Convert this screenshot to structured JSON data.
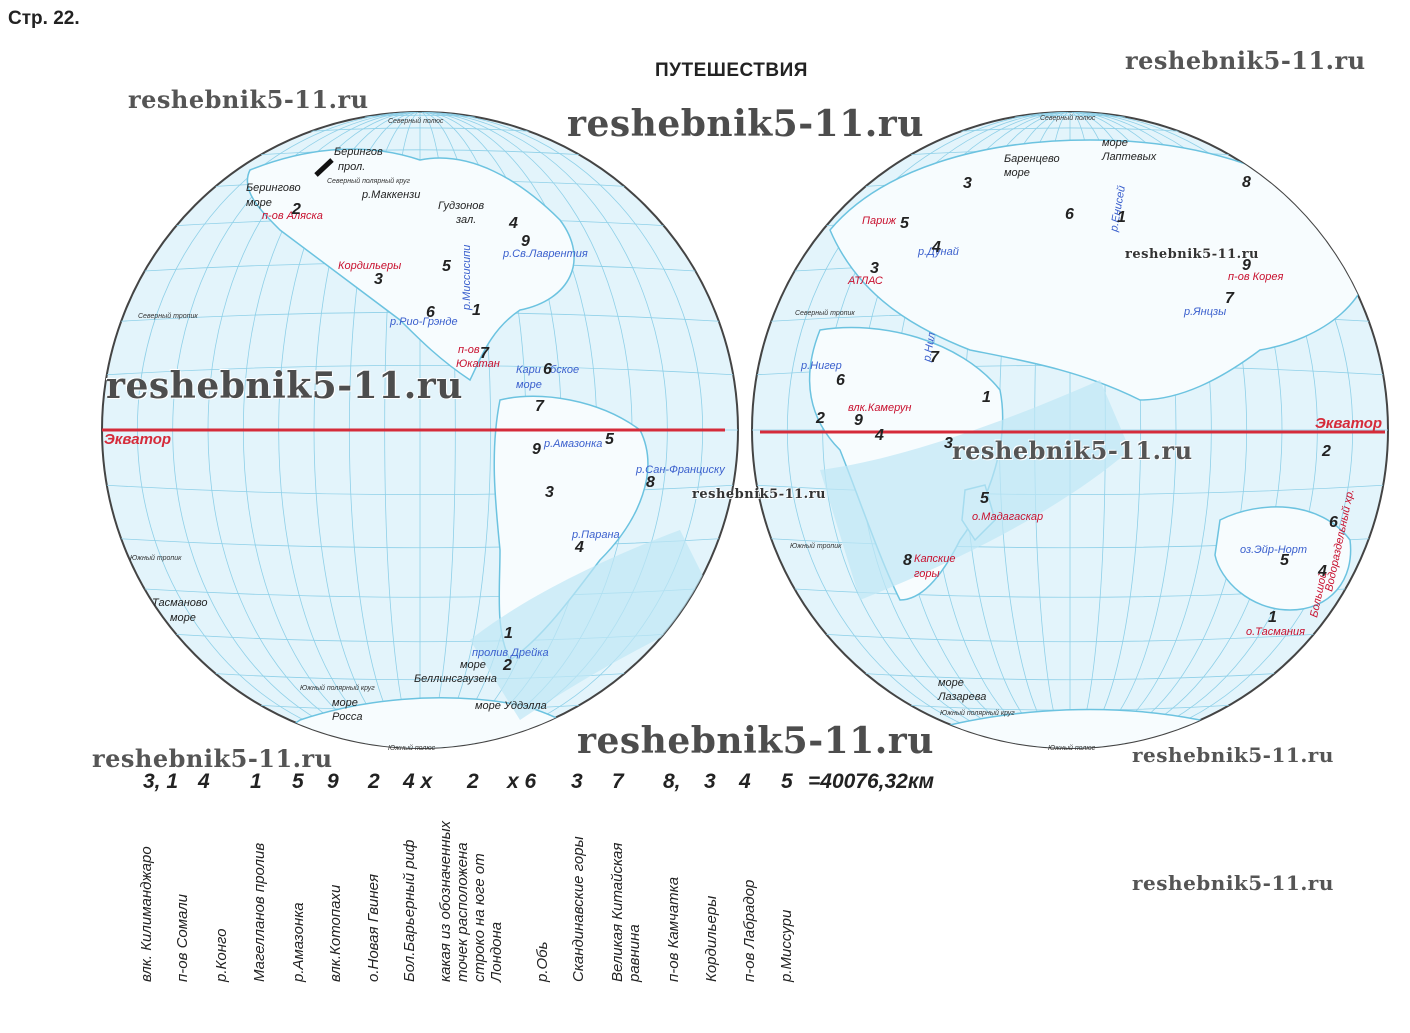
{
  "page_label": "Стр. 22.",
  "title": "ПУТЕШЕСТВИЯ",
  "watermark": "reshebnik5-11.ru",
  "colors": {
    "ocean": "#dff3fb",
    "grid": "#8fd0e8",
    "land_outline": "#6cc3e0",
    "equator": "#d52b3a",
    "route": "#bfe7f5"
  },
  "west": {
    "labels_black": [
      "Берингов",
      "прол.",
      "Берингово",
      "море",
      "р.Маккензи",
      "Гудзонов",
      "зал.",
      "Тасманово",
      "море",
      "море",
      "Беллинсгаузена",
      "море",
      "Росса",
      "море Уддэлла"
    ],
    "labels_red": [
      "п-ов Аляска",
      "Кордильеры",
      "п-ов",
      "Юкатан"
    ],
    "labels_blue": [
      "р.Миссисипи",
      "р.Св.Лаврентия",
      "р.Рио-Грэнде",
      "Кари",
      "бское",
      "море",
      "р.Амазонка",
      "р.Сан-Франциску",
      "р.Парана",
      "пролив Дрейка"
    ],
    "numbers": [
      "2",
      "4",
      "9",
      "5",
      "3",
      "6",
      "1",
      "7",
      "6",
      "7",
      "9",
      "5",
      "8",
      "3",
      "4",
      "1",
      "2"
    ],
    "equator_label": "Экватор",
    "circle_labels": [
      "Северный полюс",
      "Северный тропик",
      "Южный тропик",
      "Южный полярный круг",
      "Северный полярный круг",
      "Южный полюс"
    ]
  },
  "east": {
    "labels_black": [
      "море",
      "Лаптевых",
      "Баренцево",
      "море",
      "море",
      "Лазарева"
    ],
    "labels_red": [
      "Париж",
      "АТЛАС",
      "п-ов Корея",
      "влк.Камерун",
      "о.Мадагаскар",
      "Капские",
      "горы",
      "о.Тасмания",
      "Большой",
      "Водораздельный хр."
    ],
    "labels_blue": [
      "р.Енисей",
      "р.Дунай",
      "р.Янцзы",
      "р.Нил",
      "р.Нигер",
      "оз.Эйр-Норт"
    ],
    "numbers": [
      "3",
      "5",
      "4",
      "3",
      "6",
      "1",
      "8",
      "9",
      "7",
      "7",
      "6",
      "2",
      "9",
      "4",
      "1",
      "3",
      "5",
      "8",
      "2",
      "6",
      "5",
      "4",
      "1"
    ],
    "equator_label": "Экватор",
    "circle_labels": [
      "Северный полюс",
      "Северный тропик",
      "Южный тропик",
      "Южный полярный круг",
      "Южный полюс"
    ]
  },
  "formula": [
    {
      "t": "3, 1"
    },
    {
      "t": "4"
    },
    {
      "t": "1"
    },
    {
      "t": "5"
    },
    {
      "t": "9"
    },
    {
      "t": "2"
    },
    {
      "t": "4 x"
    },
    {
      "t": "2"
    },
    {
      "t": "x 6"
    },
    {
      "t": "3"
    },
    {
      "t": "7"
    },
    {
      "t": "8,"
    },
    {
      "t": "3"
    },
    {
      "t": "4"
    },
    {
      "t": "5"
    },
    {
      "t": "=40076,32км"
    }
  ],
  "vertical_labels": [
    "влк. Килиманджаро",
    "п-ов Сомали",
    "р.Конго",
    "Магелланов пролив",
    "р.Амазонка",
    "влк.Котопахи",
    "о.Новая Гвинея",
    "Бол.Барьерный риф",
    "какая из обозначенных\nточек расположена\nстроко на юге от\nЛондона",
    "р.Обь",
    "Скандинавские горы",
    "Великая Китайская\nравнина",
    "п-ов Камчатка",
    "Кордильеры",
    "п-ов Лабрадор",
    "р.Миссури"
  ]
}
